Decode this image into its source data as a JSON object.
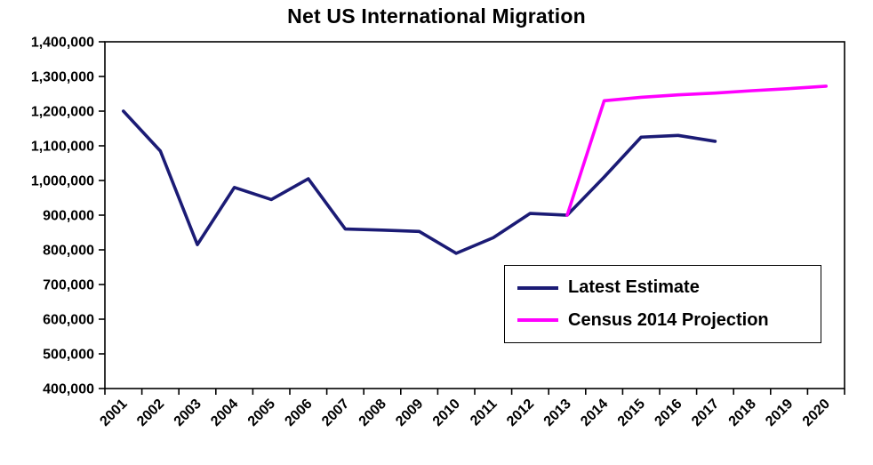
{
  "chart_data": {
    "type": "line",
    "title": "Net US International Migration",
    "categories": [
      "2001",
      "2002",
      "2003",
      "2004",
      "2005",
      "2006",
      "2007",
      "2008",
      "2009",
      "2010",
      "2011",
      "2012",
      "2013",
      "2014",
      "2015",
      "2016",
      "2017",
      "2018",
      "2019",
      "2020"
    ],
    "series": [
      {
        "name": "Latest Estimate",
        "color": "#1b1b75",
        "values": [
          1200000,
          1085000,
          815000,
          980000,
          945000,
          1005000,
          860000,
          857000,
          853000,
          790000,
          835000,
          905000,
          900000,
          1010000,
          1125000,
          1130000,
          1113000,
          null,
          null,
          null
        ]
      },
      {
        "name": "Census 2014 Projection",
        "color": "#ff00ff",
        "values": [
          null,
          null,
          null,
          null,
          null,
          null,
          null,
          null,
          null,
          null,
          null,
          null,
          900000,
          1230000,
          1240000,
          1247000,
          1252000,
          1259000,
          1265000,
          1272000
        ]
      }
    ],
    "ylim": [
      400000,
      1400000
    ],
    "ytick_step": 100000,
    "ytick_labels": [
      "400,000",
      "500,000",
      "600,000",
      "700,000",
      "800,000",
      "900,000",
      "1,000,000",
      "1,100,000",
      "1,200,000",
      "1,300,000",
      "1,400,000"
    ],
    "xlabel": "",
    "ylabel": "",
    "grid": false,
    "legend_position": "lower right",
    "legend_entries": [
      "Latest Estimate",
      "Census 2014 Projection"
    ],
    "axis_color": "#000000",
    "background_color": "#ffffff"
  }
}
